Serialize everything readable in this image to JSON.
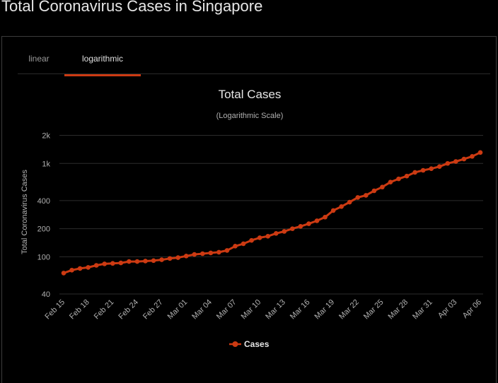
{
  "page": {
    "title": "Total Coronavirus Cases in Singapore"
  },
  "tabs": [
    {
      "label": "linear",
      "active": false
    },
    {
      "label": "logarithmic",
      "active": true
    }
  ],
  "chart_data": {
    "type": "line",
    "title": "Total Cases",
    "subtitle": "(Logarithmic Scale)",
    "xlabel": "",
    "ylabel": "Total Coronavirus Cases",
    "y_scale": "log",
    "ylim": [
      40,
      2200
    ],
    "grid": true,
    "legend": "bottom-center",
    "y_ticks": [
      {
        "value": 40,
        "label": "40"
      },
      {
        "value": 100,
        "label": "100"
      },
      {
        "value": 200,
        "label": "200"
      },
      {
        "value": 400,
        "label": "400"
      },
      {
        "value": 1000,
        "label": "1k"
      },
      {
        "value": 2000,
        "label": "2k"
      }
    ],
    "x_tick_labels": [
      "Feb 15",
      "Feb 18",
      "Feb 21",
      "Feb 24",
      "Feb 27",
      "Mar 01",
      "Mar 04",
      "Mar 07",
      "Mar 10",
      "Mar 13",
      "Mar 16",
      "Mar 19",
      "Mar 22",
      "Mar 25",
      "Mar 28",
      "Mar 31",
      "Apr 03",
      "Apr 06"
    ],
    "x": [
      "Feb 15",
      "Feb 16",
      "Feb 17",
      "Feb 18",
      "Feb 19",
      "Feb 20",
      "Feb 21",
      "Feb 22",
      "Feb 23",
      "Feb 24",
      "Feb 25",
      "Feb 26",
      "Feb 27",
      "Feb 28",
      "Feb 29",
      "Mar 01",
      "Mar 02",
      "Mar 03",
      "Mar 04",
      "Mar 05",
      "Mar 06",
      "Mar 07",
      "Mar 08",
      "Mar 09",
      "Mar 10",
      "Mar 11",
      "Mar 12",
      "Mar 13",
      "Mar 14",
      "Mar 15",
      "Mar 16",
      "Mar 17",
      "Mar 18",
      "Mar 19",
      "Mar 20",
      "Mar 21",
      "Mar 22",
      "Mar 23",
      "Mar 24",
      "Mar 25",
      "Mar 26",
      "Mar 27",
      "Mar 28",
      "Mar 29",
      "Mar 30",
      "Mar 31",
      "Apr 01",
      "Apr 02",
      "Apr 03",
      "Apr 04",
      "Apr 05",
      "Apr 06"
    ],
    "series": [
      {
        "name": "Cases",
        "color": "#cc3a12",
        "values": [
          67,
          72,
          75,
          77,
          81,
          84,
          85,
          86,
          89,
          89,
          90,
          91,
          93,
          96,
          98,
          102,
          106,
          108,
          110,
          112,
          117,
          130,
          138,
          150,
          160,
          166,
          178,
          187,
          200,
          212,
          226,
          243,
          266,
          313,
          345,
          385,
          432,
          455,
          509,
          558,
          631,
          683,
          732,
          802,
          844,
          879,
          926,
          1000,
          1049,
          1114,
          1189,
          1309
        ]
      }
    ]
  }
}
